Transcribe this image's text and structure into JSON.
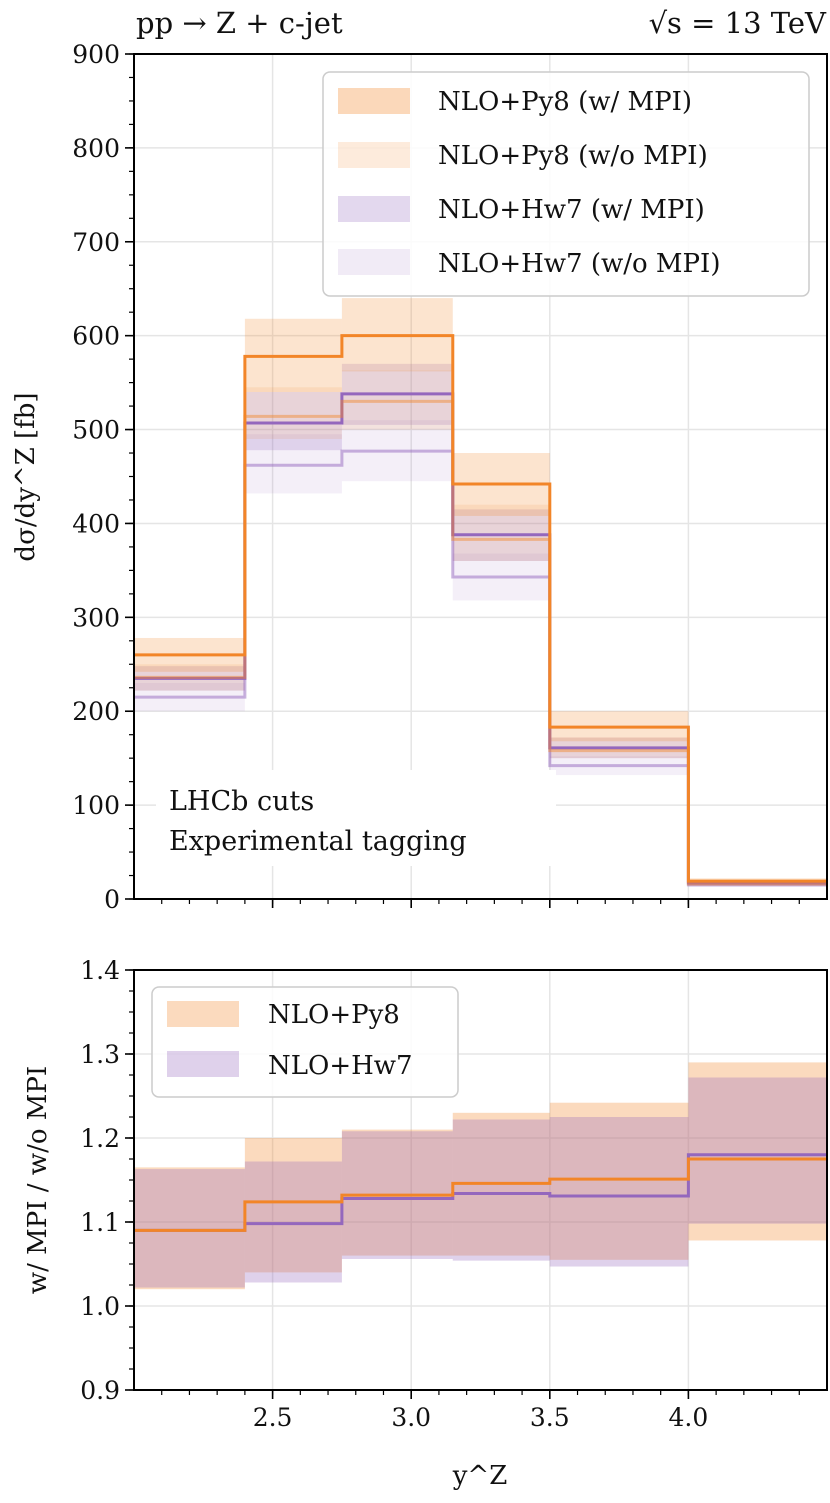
{
  "colors": {
    "py8": "#f28528",
    "py8_band": "#fdd2b0",
    "hw7": "#9467bd",
    "hw7_band": "#dcd0ea",
    "grid": "#e5e5e5",
    "axis": "#000000"
  },
  "chart_data": [
    {
      "type": "step",
      "name": "cross-section",
      "title_left": "pp → Z + c-jet",
      "title_right": "√s = 13 TeV",
      "ylabel": "dσ/dy^Z [fb]",
      "ylim": [
        0,
        900
      ],
      "yticks": [
        0,
        100,
        200,
        300,
        400,
        500,
        600,
        700,
        800,
        900
      ],
      "ytick_labels": [
        "0",
        "100",
        "200",
        "300",
        "400",
        "500",
        "600",
        "700",
        "800",
        "900"
      ],
      "xlim": [
        2.0,
        4.5
      ],
      "bin_edges": [
        2.0,
        2.4,
        2.75,
        3.15,
        3.5,
        4.0,
        4.5
      ],
      "annotation": [
        "LHCb cuts",
        "Experimental tagging"
      ],
      "legend": [
        {
          "label": "NLO+Py8 (w/ MPI)",
          "series": "py8_mpi"
        },
        {
          "label": "NLO+Py8 (w/o MPI)",
          "series": "py8_nompi"
        },
        {
          "label": "NLO+Hw7 (w/ MPI)",
          "series": "hw7_mpi"
        },
        {
          "label": "NLO+Hw7 (w/o MPI)",
          "series": "hw7_nompi"
        }
      ],
      "series": [
        {
          "name": "NLO+Py8 (w/ MPI)",
          "key": "py8_mpi",
          "line_opacity": 1.0,
          "band_opacity": 0.75,
          "values": [
            260,
            578,
            600,
            442,
            183,
            19
          ],
          "lower": [
            242,
            540,
            562,
            408,
            168,
            16
          ],
          "upper": [
            278,
            618,
            640,
            475,
            200,
            22
          ]
        },
        {
          "name": "NLO+Py8 (w/o MPI)",
          "key": "py8_nompi",
          "line_opacity": 0.45,
          "band_opacity": 0.4,
          "values": [
            236,
            514,
            530,
            383,
            158,
            16
          ],
          "lower": [
            222,
            490,
            500,
            360,
            150,
            14
          ],
          "upper": [
            250,
            545,
            563,
            420,
            172,
            18
          ]
        },
        {
          "name": "NLO+Hw7 (w/ MPI)",
          "key": "hw7_mpi",
          "line_opacity": 1.0,
          "band_opacity": 0.7,
          "values": [
            235,
            507,
            538,
            388,
            161,
            17
          ],
          "lower": [
            222,
            478,
            505,
            360,
            150,
            15
          ],
          "upper": [
            248,
            540,
            570,
            415,
            172,
            19
          ]
        },
        {
          "name": "NLO+Hw7 (w/o MPI)",
          "key": "hw7_nompi",
          "line_opacity": 0.5,
          "band_opacity": 0.35,
          "values": [
            215,
            462,
            477,
            343,
            142,
            15
          ],
          "lower": [
            200,
            432,
            445,
            318,
            132,
            13
          ],
          "upper": [
            230,
            495,
            510,
            368,
            152,
            17
          ]
        }
      ]
    },
    {
      "type": "step",
      "name": "ratio",
      "xlabel": "y^Z",
      "ylabel": "w/ MPI / w/o MPI",
      "ylim": [
        0.9,
        1.4
      ],
      "yticks": [
        0.9,
        1.0,
        1.1,
        1.2,
        1.3,
        1.4
      ],
      "ytick_labels": [
        "0.9",
        "1.0",
        "1.1",
        "1.2",
        "1.3",
        "1.4"
      ],
      "xlim": [
        2.0,
        4.5
      ],
      "xticks": [
        2.5,
        3.0,
        3.5,
        4.0
      ],
      "xtick_labels": [
        "2.5",
        "3.0",
        "3.5",
        "4.0"
      ],
      "bin_edges": [
        2.0,
        2.4,
        2.75,
        3.15,
        3.5,
        4.0,
        4.5
      ],
      "legend": [
        {
          "label": "NLO+Py8",
          "series": "py8"
        },
        {
          "label": "NLO+Hw7",
          "series": "hw7"
        }
      ],
      "series": [
        {
          "name": "NLO+Py8",
          "key": "py8",
          "values": [
            1.09,
            1.124,
            1.132,
            1.146,
            1.151,
            1.175
          ],
          "lower": [
            1.02,
            1.04,
            1.06,
            1.06,
            1.055,
            1.078
          ],
          "upper": [
            1.165,
            1.2,
            1.21,
            1.23,
            1.242,
            1.29
          ]
        },
        {
          "name": "NLO+Hw7",
          "key": "hw7",
          "values": [
            1.09,
            1.098,
            1.128,
            1.134,
            1.131,
            1.18
          ],
          "lower": [
            1.022,
            1.028,
            1.056,
            1.054,
            1.047,
            1.098
          ],
          "upper": [
            1.163,
            1.172,
            1.208,
            1.222,
            1.225,
            1.272
          ]
        }
      ]
    }
  ]
}
